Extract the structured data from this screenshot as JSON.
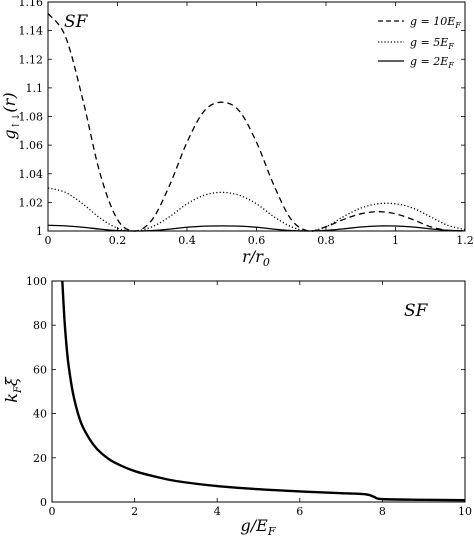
{
  "chart_data": [
    {
      "type": "line",
      "title": "",
      "panel_label": "SF",
      "xlabel": "r/r",
      "xlabel_sub": "0",
      "ylabel": "g",
      "ylabel_sub": "↑↓",
      "ylabel_suffix": "(r)",
      "xlim": [
        0,
        1.2
      ],
      "ylim": [
        1,
        1.16
      ],
      "xticks": [
        "0",
        "0.2",
        "0.4",
        "0.6",
        "0.8",
        "1",
        "1.2"
      ],
      "yticks": [
        "1",
        "1.02",
        "1.04",
        "1.06",
        "1.08",
        "1.1",
        "1.12",
        "1.14",
        "1.16"
      ],
      "legend_position": "top-right",
      "series": [
        {
          "name": "g = 10E_F",
          "legend_label": "g = 10E",
          "legend_sub": "F",
          "style": "dashed",
          "x": [
            0,
            0.05,
            0.1,
            0.15,
            0.2,
            0.25,
            0.3,
            0.35,
            0.4,
            0.45,
            0.5,
            0.55,
            0.6,
            0.65,
            0.7,
            0.75,
            0.8,
            0.85,
            0.9,
            0.95,
            1.0,
            1.05,
            1.1,
            1.15,
            1.2
          ],
          "values": [
            1.152,
            1.136,
            1.092,
            1.04,
            1.008,
            1.0,
            1.008,
            1.032,
            1.062,
            1.084,
            1.09,
            1.084,
            1.062,
            1.032,
            1.008,
            1.0,
            1.003,
            1.008,
            1.012,
            1.0135,
            1.012,
            1.008,
            1.003,
            1.0005,
            1.0
          ]
        },
        {
          "name": "g = 5E_F",
          "legend_label": "g = 5E",
          "legend_sub": "F",
          "style": "dotted",
          "x": [
            0,
            0.05,
            0.1,
            0.15,
            0.2,
            0.25,
            0.3,
            0.35,
            0.4,
            0.45,
            0.5,
            0.55,
            0.6,
            0.65,
            0.7,
            0.75,
            0.8,
            0.85,
            0.9,
            0.95,
            1.0,
            1.05,
            1.1,
            1.15,
            1.2
          ],
          "values": [
            1.03,
            1.027,
            1.019,
            1.009,
            1.002,
            1.0,
            1.003,
            1.01,
            1.019,
            1.025,
            1.027,
            1.025,
            1.019,
            1.01,
            1.003,
            1.0,
            1.003,
            1.01,
            1.016,
            1.019,
            1.019,
            1.016,
            1.01,
            1.004,
            1.001
          ]
        },
        {
          "name": "g = 2E_F",
          "legend_label": "g = 2E",
          "legend_sub": "F",
          "style": "solid",
          "x": [
            0,
            0.05,
            0.1,
            0.15,
            0.2,
            0.25,
            0.3,
            0.35,
            0.4,
            0.45,
            0.5,
            0.55,
            0.6,
            0.65,
            0.7,
            0.75,
            0.8,
            0.85,
            0.9,
            0.95,
            1.0,
            1.05,
            1.1,
            1.15,
            1.2
          ],
          "values": [
            1.004,
            1.0036,
            1.0026,
            1.0013,
            1.0003,
            1.0,
            1.0003,
            1.0013,
            1.0026,
            1.0034,
            1.0036,
            1.0034,
            1.0026,
            1.0013,
            1.0003,
            1.0,
            1.0004,
            1.0015,
            1.0028,
            1.0035,
            1.0035,
            1.0028,
            1.0015,
            1.0005,
            1.0001
          ]
        }
      ]
    },
    {
      "type": "line",
      "title": "",
      "panel_label": "SF",
      "xlabel": "g/E",
      "xlabel_sub": "F",
      "ylabel": "k",
      "ylabel_sub": "F",
      "ylabel_suffix": "ξ",
      "xlim": [
        0,
        10
      ],
      "ylim": [
        0,
        100
      ],
      "xticks": [
        "0",
        "2",
        "4",
        "6",
        "8",
        "10"
      ],
      "yticks": [
        "0",
        "20",
        "40",
        "60",
        "80",
        "100"
      ],
      "series": [
        {
          "style": "solid",
          "x": [
            0.25,
            0.3,
            0.35,
            0.4,
            0.5,
            0.6,
            0.7,
            0.8,
            1.0,
            1.2,
            1.5,
            2.0,
            2.5,
            3.0,
            4.0,
            5.0,
            6.0,
            7.0,
            7.6,
            7.8,
            8.0,
            9.0,
            10.0
          ],
          "values": [
            100,
            83,
            71,
            62,
            50,
            42,
            36,
            32,
            26,
            22,
            18,
            14,
            11.5,
            9.5,
            7.2,
            5.8,
            4.8,
            4.0,
            3.5,
            2.3,
            1.3,
            1.0,
            0.8
          ]
        }
      ]
    }
  ]
}
